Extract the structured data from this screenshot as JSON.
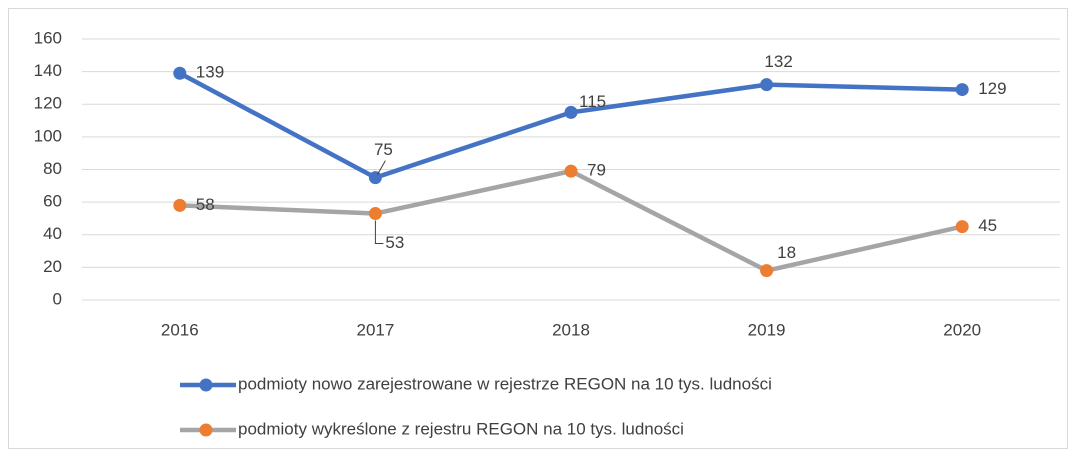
{
  "chart_data": {
    "type": "line",
    "categories": [
      "2016",
      "2017",
      "2018",
      "2019",
      "2020"
    ],
    "series": [
      {
        "name": "podmioty nowo zarejestrowane w rejestrze REGON na 10 tys. ludności",
        "color": "#4472c4",
        "marker_color": "#4472c4",
        "values": [
          139,
          75,
          115,
          132,
          129
        ]
      },
      {
        "name": "podmioty wykreślone z rejestru REGON na 10 tys. ludności",
        "color": "#a5a5a5",
        "marker_color": "#ed7d31",
        "values": [
          58,
          53,
          79,
          18,
          45
        ]
      }
    ],
    "ylim": [
      0,
      160
    ],
    "yticks": [
      0,
      20,
      40,
      60,
      80,
      100,
      120,
      140,
      160
    ],
    "grid": true,
    "legend": "bottom",
    "data_labels": true
  }
}
